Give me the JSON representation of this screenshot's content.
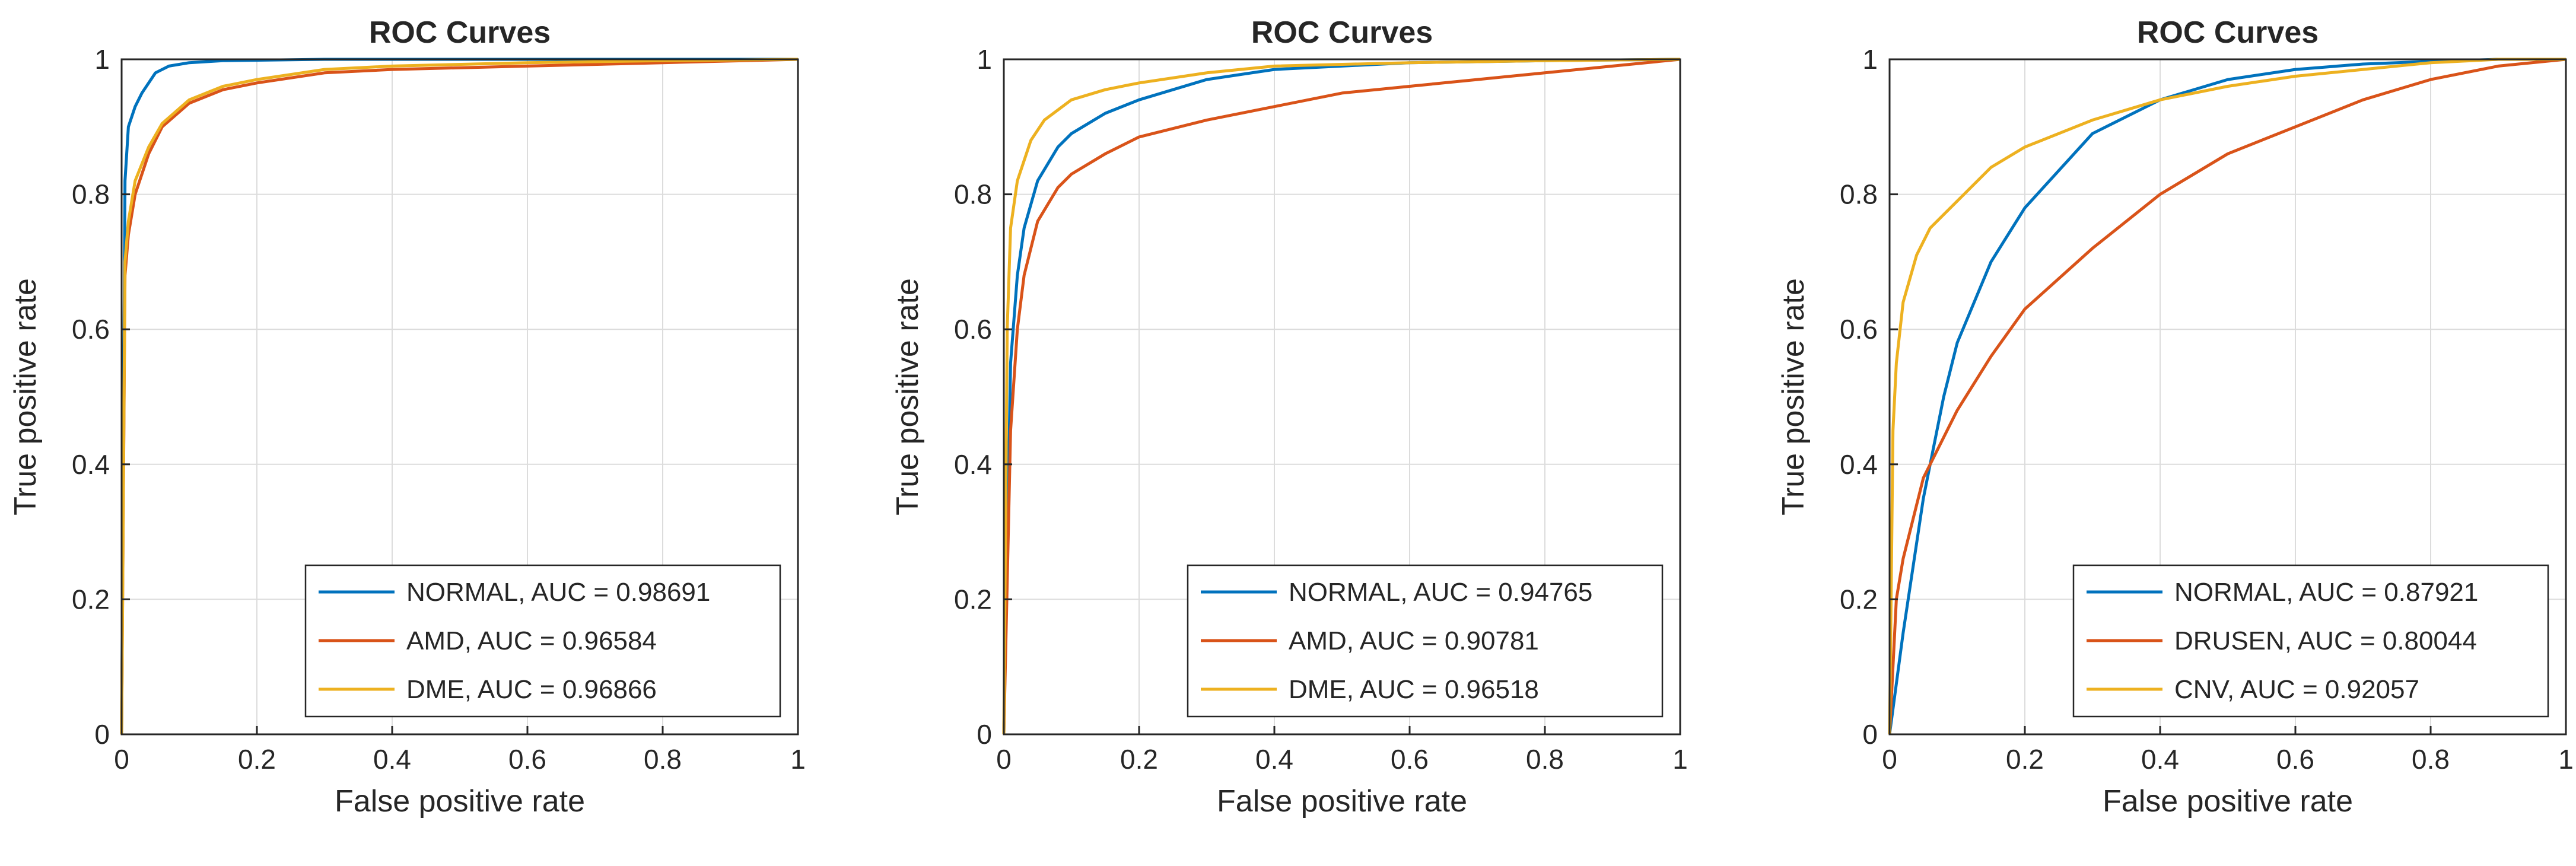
{
  "chart_data": [
    {
      "type": "line",
      "title": "ROC Curves",
      "xlabel": "False positive rate",
      "ylabel": "True positive rate",
      "xlim": [
        0,
        1
      ],
      "ylim": [
        0,
        1
      ],
      "grid": true,
      "legend_position": "bottom-right",
      "x_ticks": [
        "0",
        "0.2",
        "0.4",
        "0.6",
        "0.8",
        "1"
      ],
      "y_ticks": [
        "0",
        "0.2",
        "0.4",
        "0.6",
        "0.8",
        "1"
      ],
      "series": [
        {
          "name": "NORMAL, AUC = 0.98691",
          "color": "#0072BD",
          "x": [
            0,
            0.005,
            0.01,
            0.02,
            0.03,
            0.05,
            0.07,
            0.1,
            0.15,
            0.3,
            0.6,
            1
          ],
          "y": [
            0,
            0.82,
            0.9,
            0.93,
            0.95,
            0.98,
            0.99,
            0.995,
            0.998,
            1,
            1,
            1
          ]
        },
        {
          "name": "AMD, AUC = 0.96584",
          "color": "#D95319",
          "x": [
            0,
            0.005,
            0.01,
            0.02,
            0.04,
            0.06,
            0.1,
            0.15,
            0.2,
            0.3,
            0.4,
            0.6,
            0.8,
            1
          ],
          "y": [
            0,
            0.68,
            0.74,
            0.8,
            0.86,
            0.9,
            0.935,
            0.955,
            0.965,
            0.98,
            0.985,
            0.99,
            0.995,
            1
          ]
        },
        {
          "name": "DME, AUC = 0.96866",
          "color": "#EDB120",
          "x": [
            0,
            0.005,
            0.01,
            0.02,
            0.04,
            0.06,
            0.1,
            0.15,
            0.2,
            0.3,
            0.4,
            0.6,
            0.8,
            1
          ],
          "y": [
            0,
            0.7,
            0.76,
            0.82,
            0.87,
            0.905,
            0.94,
            0.96,
            0.97,
            0.985,
            0.99,
            0.995,
            0.998,
            1
          ]
        }
      ]
    },
    {
      "type": "line",
      "title": "ROC Curves",
      "xlabel": "False positive rate",
      "ylabel": "True positive rate",
      "xlim": [
        0,
        1
      ],
      "ylim": [
        0,
        1
      ],
      "grid": true,
      "legend_position": "bottom-right",
      "x_ticks": [
        "0",
        "0.2",
        "0.4",
        "0.6",
        "0.8",
        "1"
      ],
      "y_ticks": [
        "0",
        "0.2",
        "0.4",
        "0.6",
        "0.8",
        "1"
      ],
      "series": [
        {
          "name": "NORMAL, AUC = 0.94765",
          "color": "#0072BD",
          "x": [
            0,
            0.01,
            0.02,
            0.03,
            0.05,
            0.08,
            0.1,
            0.15,
            0.2,
            0.3,
            0.4,
            0.6,
            0.8,
            1
          ],
          "y": [
            0,
            0.55,
            0.68,
            0.75,
            0.82,
            0.87,
            0.89,
            0.92,
            0.94,
            0.97,
            0.985,
            0.995,
            0.998,
            1
          ]
        },
        {
          "name": "AMD, AUC = 0.90781",
          "color": "#D95319",
          "x": [
            0,
            0.01,
            0.02,
            0.03,
            0.05,
            0.08,
            0.1,
            0.15,
            0.2,
            0.3,
            0.4,
            0.5,
            0.6,
            0.7,
            0.8,
            0.9,
            1
          ],
          "y": [
            0,
            0.45,
            0.6,
            0.68,
            0.76,
            0.81,
            0.83,
            0.86,
            0.885,
            0.91,
            0.93,
            0.95,
            0.96,
            0.97,
            0.98,
            0.99,
            1
          ]
        },
        {
          "name": "DME, AUC = 0.96518",
          "color": "#EDB120",
          "x": [
            0,
            0.005,
            0.01,
            0.02,
            0.04,
            0.06,
            0.1,
            0.15,
            0.2,
            0.3,
            0.4,
            0.6,
            0.8,
            1
          ],
          "y": [
            0,
            0.6,
            0.75,
            0.82,
            0.88,
            0.91,
            0.94,
            0.955,
            0.965,
            0.98,
            0.99,
            0.995,
            0.998,
            1
          ]
        }
      ]
    },
    {
      "type": "line",
      "title": "ROC Curves",
      "xlabel": "False positive rate",
      "ylabel": "True positive rate",
      "xlim": [
        0,
        1
      ],
      "ylim": [
        0,
        1
      ],
      "grid": true,
      "legend_position": "bottom-right",
      "x_ticks": [
        "0",
        "0.2",
        "0.4",
        "0.6",
        "0.8",
        "1"
      ],
      "y_ticks": [
        "0",
        "0.2",
        "0.4",
        "0.6",
        "0.8",
        "1"
      ],
      "series": [
        {
          "name": "NORMAL, AUC = 0.87921",
          "color": "#0072BD",
          "x": [
            0,
            0.02,
            0.05,
            0.08,
            0.1,
            0.15,
            0.2,
            0.3,
            0.4,
            0.5,
            0.6,
            0.7,
            0.8,
            0.9,
            1
          ],
          "y": [
            0,
            0.15,
            0.35,
            0.5,
            0.58,
            0.7,
            0.78,
            0.89,
            0.94,
            0.97,
            0.985,
            0.993,
            0.997,
            1,
            1
          ]
        },
        {
          "name": "DRUSEN, AUC = 0.80044",
          "color": "#D95319",
          "x": [
            0,
            0.01,
            0.02,
            0.05,
            0.1,
            0.15,
            0.2,
            0.3,
            0.4,
            0.5,
            0.6,
            0.7,
            0.8,
            0.9,
            1
          ],
          "y": [
            0,
            0.2,
            0.26,
            0.38,
            0.48,
            0.56,
            0.63,
            0.72,
            0.8,
            0.86,
            0.9,
            0.94,
            0.97,
            0.99,
            1
          ]
        },
        {
          "name": "CNV, AUC = 0.92057",
          "color": "#EDB120",
          "x": [
            0,
            0.005,
            0.01,
            0.02,
            0.04,
            0.06,
            0.1,
            0.15,
            0.2,
            0.3,
            0.4,
            0.5,
            0.6,
            0.7,
            0.8,
            0.9,
            1
          ],
          "y": [
            0,
            0.45,
            0.55,
            0.64,
            0.71,
            0.75,
            0.79,
            0.84,
            0.87,
            0.91,
            0.94,
            0.96,
            0.975,
            0.985,
            0.995,
            1,
            1
          ]
        }
      ]
    }
  ]
}
